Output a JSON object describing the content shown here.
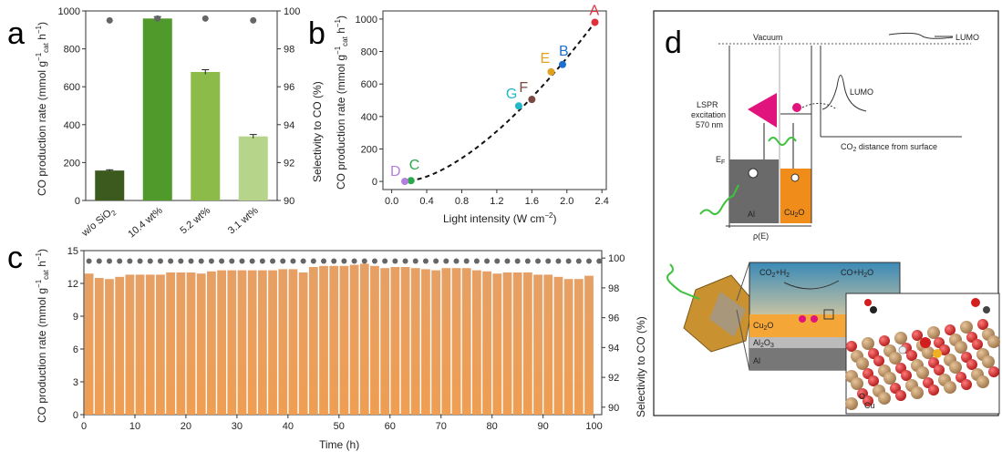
{
  "panels": {
    "a": "a",
    "b": "b",
    "c": "c",
    "d": "d"
  },
  "chart_data": [
    {
      "type": "bar",
      "panel": "a",
      "categories": [
        "w/o SiO2",
        "10.4 wt%",
        "5.2 wt%",
        "3.1 wt%"
      ],
      "values": [
        158,
        960,
        678,
        338
      ],
      "errors": [
        4,
        10,
        12,
        10
      ],
      "colors": [
        "#3d5a1e",
        "#4f9a2a",
        "#8dbb4a",
        "#b6d58a"
      ],
      "selectivity": [
        99.5,
        99.6,
        99.6,
        99.5
      ],
      "ylabel": "CO production rate (mmol g cat h )",
      "y2label": "Selectivity to CO (%)",
      "ylim": [
        0,
        1000
      ],
      "y2lim": [
        90,
        100
      ],
      "yticks": [
        0,
        200,
        400,
        600,
        800,
        1000
      ],
      "y2ticks": [
        90,
        92,
        94,
        96,
        98,
        100
      ]
    },
    {
      "type": "scatter",
      "panel": "b",
      "points": [
        {
          "label": "A",
          "x": 2.32,
          "y": 980,
          "color": "#e0303a"
        },
        {
          "label": "B",
          "x": 1.95,
          "y": 720,
          "color": "#1f6fd1"
        },
        {
          "label": "E",
          "x": 1.82,
          "y": 675,
          "color": "#e0a020"
        },
        {
          "label": "F",
          "x": 1.6,
          "y": 505,
          "color": "#7a4a42"
        },
        {
          "label": "G",
          "x": 1.45,
          "y": 465,
          "color": "#22b7c7"
        },
        {
          "label": "C",
          "x": 0.22,
          "y": 5,
          "color": "#2aa84a"
        },
        {
          "label": "D",
          "x": 0.15,
          "y": 0,
          "color": "#b57de0"
        }
      ],
      "fit_curve": true,
      "xlabel": "Light intensity (W cm )",
      "ylabel": "CO production rate (mmol g cat h )",
      "xlim": [
        -0.1,
        2.45
      ],
      "ylim": [
        -50,
        1050
      ],
      "xticks": [
        "0.0",
        "0.4",
        "0.8",
        "1.2",
        "1.6",
        "2.0",
        "2.4"
      ],
      "yticks": [
        0,
        200,
        400,
        600,
        800,
        1000
      ]
    },
    {
      "type": "bar",
      "panel": "c",
      "x": [
        1,
        3,
        5,
        7,
        9,
        11,
        13,
        15,
        17,
        19,
        21,
        23,
        25,
        27,
        29,
        31,
        33,
        35,
        37,
        39,
        41,
        43,
        45,
        47,
        49,
        51,
        53,
        55,
        57,
        59,
        61,
        63,
        65,
        67,
        69,
        71,
        73,
        75,
        77,
        79,
        81,
        83,
        85,
        87,
        89,
        91,
        93,
        95,
        97,
        99
      ],
      "values": [
        12.9,
        12.5,
        12.4,
        12.6,
        12.8,
        12.8,
        12.8,
        12.8,
        13.0,
        13.0,
        13.0,
        12.9,
        13.1,
        13.2,
        13.2,
        13.2,
        13.2,
        13.2,
        13.2,
        13.3,
        13.3,
        13.0,
        13.5,
        13.6,
        13.6,
        13.6,
        13.7,
        13.8,
        13.6,
        13.4,
        13.5,
        13.5,
        13.4,
        13.3,
        13.2,
        13.4,
        13.4,
        13.4,
        13.2,
        13.1,
        12.9,
        13.0,
        13.0,
        13.0,
        12.8,
        12.8,
        12.6,
        12.4,
        12.4,
        12.7
      ],
      "selectivity": 99.8,
      "xlabel": "Time (h)",
      "ylabel": "CO production rate (mmol g cat h )",
      "y2label": "Selectivity to CO (%)",
      "ylim": [
        0,
        15
      ],
      "y2lim": [
        89.5,
        100.5
      ],
      "xticks": [
        0,
        10,
        20,
        30,
        40,
        50,
        60,
        70,
        80,
        90,
        100
      ],
      "yticks": [
        0,
        3,
        6,
        9,
        12,
        15
      ],
      "y2ticks": [
        90,
        92,
        94,
        96,
        98,
        100
      ]
    }
  ],
  "diagram": {
    "vacuum": "Vacuum",
    "lumo": "LUMO",
    "lumo2": "LUMO",
    "lspr1": "LSPR",
    "lspr2": "excitation",
    "lspr3": "570 nm",
    "ef": "E",
    "al": "Al",
    "cu2o": "Cu2O",
    "rho": "ρ(E)",
    "co2dist": "CO distance from surface",
    "rxn1": "CO +H",
    "rxn2": "CO+H O",
    "layer_cu2o": "Cu O",
    "layer_al2o3": "Al O",
    "layer_al": "Al",
    "o_label": "O",
    "cu_label": "Cu"
  }
}
